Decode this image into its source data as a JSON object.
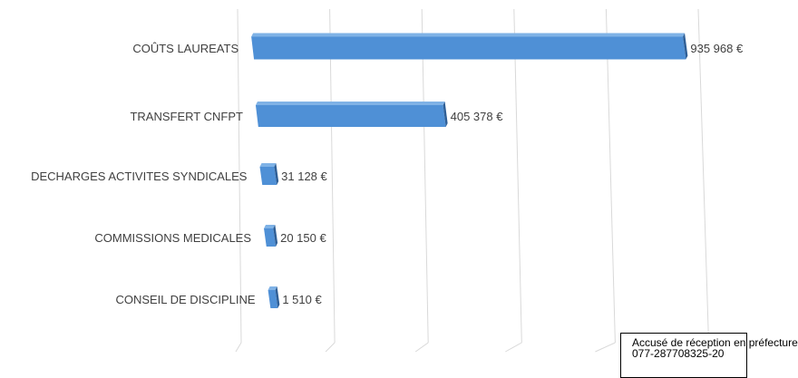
{
  "chart_data": {
    "type": "bar",
    "orientation": "horizontal",
    "style": "3d",
    "categories": [
      "COÛTS LAUREATS",
      "TRANSFERT CNFPT",
      "DECHARGES ACTIVITES SYNDICALES",
      "COMMISSIONS MEDICALES",
      "CONSEIL DE DISCIPLINE"
    ],
    "values": [
      935968,
      405378,
      31128,
      20150,
      1510
    ],
    "data_labels": [
      "935 968 €",
      "405 378 €",
      "31 128 €",
      "20 150 €",
      "1 510 €"
    ],
    "xlim": [
      0,
      1000000
    ],
    "grid": true,
    "colors": {
      "bar_front": "#4f90d6",
      "bar_top": "#7fb2e6",
      "bar_side": "#2f5f96",
      "grid": "#d9d9d9"
    }
  },
  "stamp": {
    "line1": "Accusé de réception en préfecture",
    "line2": "077-287708325-20"
  }
}
